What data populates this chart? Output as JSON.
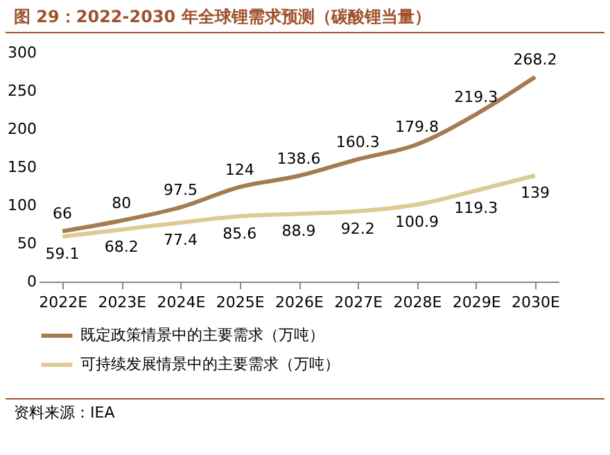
{
  "chart_data": {
    "type": "line",
    "title": "图 29：2022-2030 年全球锂需求预测（碳酸锂当量）",
    "categories": [
      "2022E",
      "2023E",
      "2024E",
      "2025E",
      "2026E",
      "2027E",
      "2028E",
      "2029E",
      "2030E"
    ],
    "series": [
      {
        "name": "既定政策情景中的主要需求（万吨）",
        "color": "#a57c52",
        "values": [
          66,
          80,
          97.5,
          124,
          138.6,
          160.3,
          179.8,
          219.3,
          268.2
        ]
      },
      {
        "name": "可持续发展情景中的主要需求（万吨）",
        "color": "#ddcb95",
        "values": [
          59.1,
          68.2,
          77.4,
          85.6,
          88.9,
          92.2,
          100.9,
          119.3,
          139
        ]
      }
    ],
    "ylim": [
      0,
      300
    ],
    "yticks": [
      0,
      50,
      100,
      150,
      200,
      250,
      300
    ],
    "grid": false,
    "legend": "bottom",
    "marker": "none",
    "line_style": "solid",
    "data_labels": true,
    "annotations": [
      "资料来源：IEA"
    ]
  }
}
